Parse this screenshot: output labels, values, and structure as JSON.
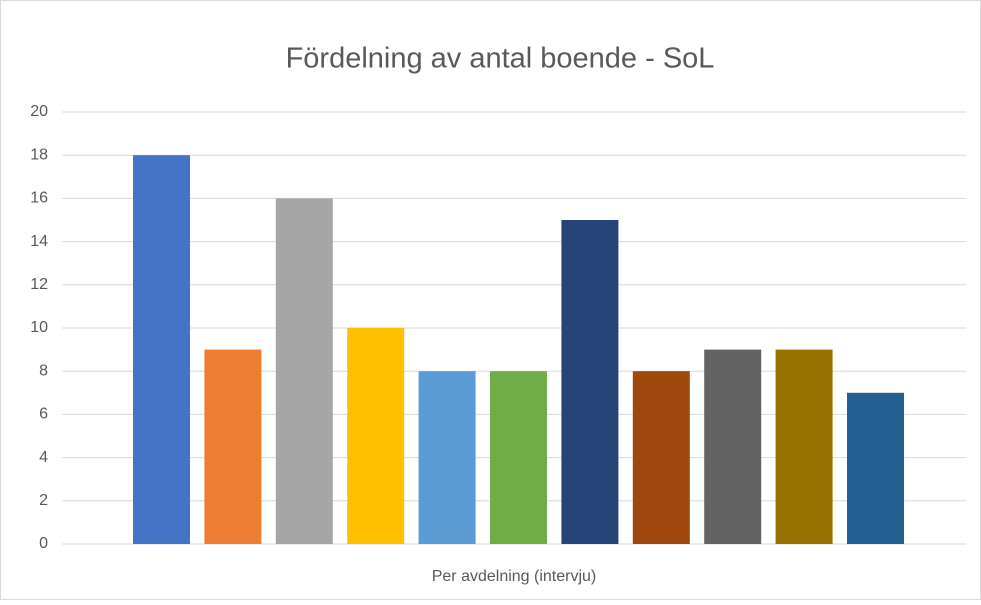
{
  "chart_data": {
    "type": "bar",
    "title": "Fördelning av antal boende - SoL",
    "x_label": "Per avdelning (intervju)",
    "categories": [
      null,
      null,
      null,
      null,
      null,
      null,
      null,
      null,
      null,
      null,
      null
    ],
    "values": [
      18,
      9,
      16,
      10,
      8,
      8,
      15,
      8,
      9,
      9,
      7
    ],
    "colors": [
      "#4472c4",
      "#ed7d31",
      "#a5a5a5",
      "#ffc000",
      "#5b9bd5",
      "#70ad47",
      "#264478",
      "#9e480e",
      "#636363",
      "#997300",
      "#255e91"
    ],
    "ylim": [
      0,
      20
    ],
    "yticks": [
      0,
      2,
      4,
      6,
      8,
      10,
      12,
      14,
      16,
      18,
      20
    ],
    "grid": true
  }
}
